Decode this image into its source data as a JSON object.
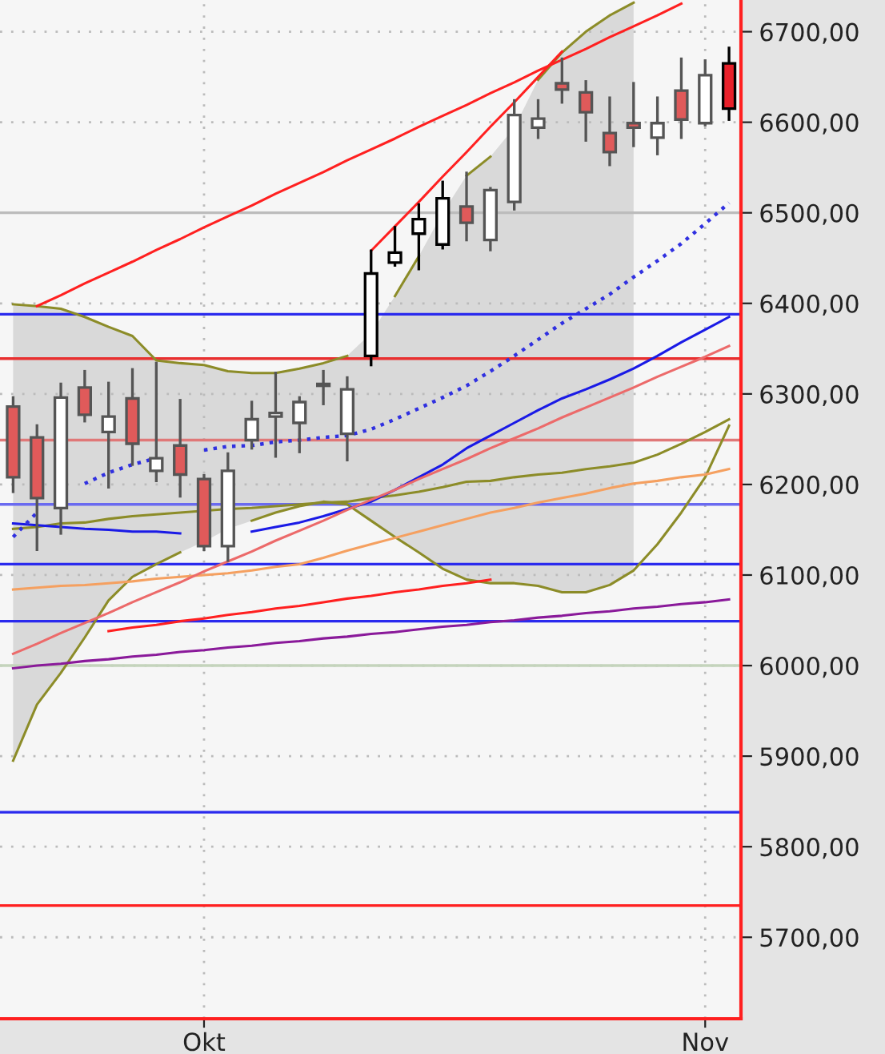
{
  "chart_data": {
    "type": "candlestick",
    "categories": [
      null,
      null,
      null,
      null,
      null,
      null,
      null,
      null,
      "Okt",
      null,
      null,
      null,
      null,
      null,
      null,
      null,
      null,
      null,
      null,
      null,
      null,
      null,
      null,
      null,
      null,
      null,
      null,
      null,
      null,
      "Nov",
      null
    ],
    "ohlc": [
      [
        6286,
        6296,
        6192,
        6208
      ],
      [
        6252,
        6265,
        6128,
        6185
      ],
      [
        6174,
        6311,
        6146,
        6296
      ],
      [
        6307,
        6325,
        6270,
        6277
      ],
      [
        6258,
        6312,
        6197,
        6275
      ],
      [
        6295,
        6327,
        6222,
        6245
      ],
      [
        6215,
        6334,
        6204,
        6229
      ],
      [
        6243,
        6293,
        6187,
        6211
      ],
      [
        6206,
        6210,
        6128,
        6132
      ],
      [
        6132,
        6234,
        6116,
        6215
      ],
      [
        6249,
        6291,
        6240,
        6272
      ],
      [
        6275,
        6323,
        6231,
        6279
      ],
      [
        6268,
        6296,
        6236,
        6291
      ],
      [
        6311,
        6325,
        6289,
        6309
      ],
      [
        6256,
        6318,
        6227,
        6305
      ],
      [
        6342,
        6458,
        6332,
        6433
      ],
      [
        6445,
        6484,
        6442,
        6456
      ],
      [
        6477,
        6509,
        6438,
        6493
      ],
      [
        6465,
        6534,
        6461,
        6516
      ],
      [
        6507,
        6544,
        6470,
        6489
      ],
      [
        6470,
        6527,
        6459,
        6525
      ],
      [
        6512,
        6624,
        6504,
        6608
      ],
      [
        6594,
        6624,
        6583,
        6604
      ],
      [
        6643,
        6670,
        6622,
        6636
      ],
      [
        6633,
        6645,
        6580,
        6611
      ],
      [
        6588,
        6627,
        6553,
        6567
      ],
      [
        6599,
        6643,
        6574,
        6594
      ],
      [
        6583,
        6627,
        6565,
        6599
      ],
      [
        6635,
        6670,
        6583,
        6603
      ],
      [
        6599,
        6668,
        6597,
        6652
      ],
      [
        6665,
        6682,
        6603,
        6615
      ]
    ],
    "colors": [
      "#e05a5a",
      "#e05a5a",
      "#ffffff",
      "#e05a5a",
      "#ffffff",
      "#e05a5a",
      "#ffffff",
      "#e05a5a",
      "#e05a5a",
      "#ffffff",
      "#ffffff",
      "#ffffff",
      "#ffffff",
      "#e05a5a",
      "#ffffff",
      "#ffffff",
      "#ffffff",
      "#ffffff",
      "#ffffff",
      "#e05a5a",
      "#ffffff",
      "#ffffff",
      "#ffffff",
      "#e05a5a",
      "#e05a5a",
      "#e05a5a",
      "#e05a5a",
      "#ffffff",
      "#e05a5a",
      "#ffffff",
      "#e8202a"
    ],
    "series": [
      {
        "type": "line",
        "color": "#8c8c28",
        "values": [
          6151,
          6153,
          6157,
          6158,
          6162,
          6165,
          6167,
          6169,
          6171,
          6173,
          6174,
          6176,
          6178,
          6180,
          6181,
          6185,
          6188,
          6192,
          6197,
          6203,
          6204,
          6208,
          6211,
          6213,
          6217,
          6220,
          6224,
          6233,
          6245,
          6258,
          6272
        ],
        "lower": [
          5895,
          5957,
          5992,
          6031,
          6072,
          6098,
          6112,
          6125,
          6137,
          6151,
          6160,
          6169,
          6176,
          6181,
          6178,
          6160,
          6142,
          6125,
          6107,
          6095,
          6091,
          6091,
          6088,
          6081,
          6081,
          6089,
          6105,
          null,
          null,
          null,
          null
        ],
        "upper": [
          6399,
          6397,
          6394,
          6385,
          6374,
          6364,
          6337,
          6334,
          6332,
          6325,
          6323,
          6323,
          6328,
          6334,
          6342,
          6367,
          6408,
          6452,
          6500,
          6541,
          6562,
          6594,
          6647,
          6677,
          6700,
          6718,
          6732,
          null,
          null,
          null,
          null
        ]
      },
      {
        "type": "line",
        "color": "#8c8c28",
        "values": [
          6399,
          6397,
          6394,
          6385,
          6374,
          6364,
          6337,
          6334,
          6332,
          6325,
          6323,
          6323,
          6328,
          6334,
          6342,
          null,
          6408,
          6452,
          null,
          6541,
          6562,
          null,
          6647,
          6677,
          6700,
          6718,
          6732,
          null,
          null,
          null,
          null
        ]
      },
      {
        "type": "line",
        "color": "#8c8c28",
        "values": [
          5895,
          5957,
          5992,
          6031,
          6072,
          6098,
          6112,
          6125,
          null,
          null,
          6160,
          6169,
          6176,
          6181,
          6178,
          6160,
          6142,
          6125,
          6107,
          6095,
          6091,
          6091,
          6088,
          6081,
          6081,
          6089,
          6105,
          6134,
          6169,
          6208,
          6265
        ]
      },
      {
        "type": "line",
        "color": "#1a1ae6",
        "values": [
          6157,
          6155,
          6153,
          6151,
          6150,
          6148,
          6148,
          6146,
          null,
          null,
          6148,
          6153,
          6158,
          6165,
          6173,
          6181,
          6194,
          6208,
          6222,
          6240,
          6254,
          6268,
          6282,
          6295,
          6305,
          6316,
          6328,
          6342,
          6357,
          6371,
          6385
        ]
      },
      {
        "type": "line",
        "color": "#3030e0",
        "line_style": "dotted",
        "values": [
          6142,
          6169,
          null,
          6201,
          6213,
          6222,
          6229,
          null,
          6238,
          6242,
          6243,
          6247,
          6249,
          6252,
          6254,
          6261,
          6272,
          6284,
          6296,
          6309,
          6325,
          6342,
          6360,
          6378,
          6394,
          6410,
          6429,
          6447,
          6466,
          6488,
          6511
        ]
      },
      {
        "type": "line",
        "color": "#f5a060",
        "values": [
          6084,
          6086,
          6088,
          6089,
          6091,
          6093,
          6096,
          6098,
          6100,
          6102,
          6105,
          6109,
          6112,
          6119,
          6127,
          6134,
          6141,
          6148,
          6155,
          6162,
          6169,
          6174,
          6180,
          6185,
          6190,
          6196,
          6201,
          6204,
          6208,
          6211,
          6217
        ]
      },
      {
        "type": "line",
        "color": "#8a1a9a",
        "values": [
          5997,
          6000,
          6002,
          6005,
          6007,
          6010,
          6012,
          6015,
          6017,
          6020,
          6022,
          6025,
          6027,
          6030,
          6032,
          6035,
          6037,
          6040,
          6043,
          6045,
          6048,
          6050,
          6053,
          6055,
          6058,
          6060,
          6063,
          6065,
          6068,
          6070,
          6073
        ]
      },
      {
        "type": "line",
        "color": "#ff2020",
        "values": [
          null,
          6397,
          6409,
          6422,
          6434,
          6446,
          6459,
          6471,
          6484,
          6496,
          6508,
          6521,
          6533,
          6545,
          6558,
          6570,
          6582,
          6595,
          6607,
          6619,
          6632,
          6644,
          6657,
          6669,
          6681,
          6694,
          6706,
          6718,
          6731,
          null,
          null
        ]
      },
      {
        "type": "line",
        "color": "#ec6a6a",
        "values": [
          6013,
          6024,
          6036,
          6047,
          6058,
          6070,
          6081,
          6092,
          6104,
          6115,
          6126,
          6138,
          6149,
          6160,
          6172,
          6183,
          6194,
          6206,
          6217,
          6228,
          6240,
          6251,
          6262,
          6274,
          6285,
          6296,
          6307,
          6319,
          6330,
          6341,
          6353
        ]
      },
      {
        "type": "line",
        "color": "#ff2020",
        "values": [
          null,
          null,
          null,
          null,
          6038,
          6042,
          6045,
          6049,
          6052,
          6056,
          6059,
          6063,
          6066,
          6070,
          6074,
          6077,
          6081,
          6084,
          6088,
          6091,
          6095,
          null,
          null,
          null,
          null,
          null,
          null,
          null,
          null,
          null,
          null
        ]
      },
      {
        "type": "line",
        "color": "#ff2020",
        "values": [
          null,
          null,
          null,
          null,
          null,
          null,
          null,
          null,
          null,
          null,
          null,
          null,
          null,
          null,
          null,
          6458,
          6485,
          6512,
          6540,
          6567,
          6595,
          6622,
          6650,
          6678,
          null,
          null,
          null,
          null,
          null,
          null,
          null
        ]
      }
    ],
    "ref_lines": [
      {
        "axis": "y",
        "value": 6500,
        "color": "#bcbcbc"
      },
      {
        "axis": "y",
        "value": 6388,
        "color": "#2a2aee"
      },
      {
        "axis": "y",
        "value": 6339,
        "color": "#e83030"
      },
      {
        "axis": "y",
        "value": 6249,
        "color": "#e07878"
      },
      {
        "axis": "y",
        "value": 6178,
        "color": "#6a6af0"
      },
      {
        "axis": "y",
        "value": 6112,
        "color": "#2a2aee"
      },
      {
        "axis": "y",
        "value": 6049,
        "color": "#2a2aee"
      },
      {
        "axis": "y",
        "value": 6000,
        "color": "#c4d4bc"
      },
      {
        "axis": "y",
        "value": 5838,
        "color": "#2a2aee"
      },
      {
        "axis": "y",
        "value": 5735,
        "color": "#ff2020"
      }
    ],
    "ylim": [
      5610,
      6735
    ],
    "yticks": [
      {
        "value": 5700,
        "label": "5700,00"
      },
      {
        "value": 5800,
        "label": "5800,00"
      },
      {
        "value": 5900,
        "label": "5900,00"
      },
      {
        "value": 6000,
        "label": "6000,00"
      },
      {
        "value": 6100,
        "label": "6100,00"
      },
      {
        "value": 6200,
        "label": "6200,00"
      },
      {
        "value": 6300,
        "label": "6300,00"
      },
      {
        "value": 6400,
        "label": "6400,00"
      },
      {
        "value": 6500,
        "label": "6500,00"
      },
      {
        "value": 6600,
        "label": "6600,00"
      },
      {
        "value": 6700,
        "label": "6700,00"
      }
    ],
    "grid": true
  }
}
